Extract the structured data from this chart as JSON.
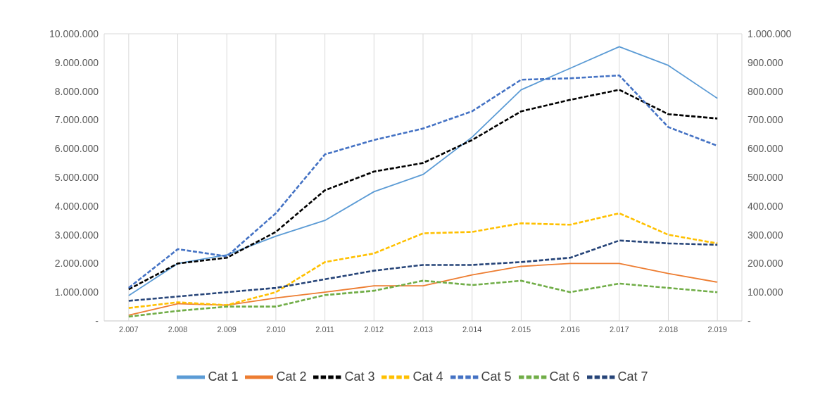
{
  "chart_data": {
    "type": "line",
    "categories": [
      "2.007",
      "2.008",
      "2.009",
      "2.010",
      "2.011",
      "2.012",
      "2.013",
      "2.014",
      "2.015",
      "2.016",
      "2.017",
      "2.018",
      "2.019"
    ],
    "series": [
      {
        "name": "Cat 1",
        "color": "#5b9bd5",
        "line_style": "solid",
        "values": [
          880000,
          2000000,
          2300000,
          2950000,
          3500000,
          4500000,
          5100000,
          6400000,
          8050000,
          8800000,
          9550000,
          8900000,
          7750000
        ]
      },
      {
        "name": "Cat 2",
        "color": "#ed7d31",
        "line_style": "solid",
        "values": [
          200000,
          600000,
          550000,
          800000,
          1000000,
          1220000,
          1220000,
          1600000,
          1900000,
          2000000,
          2000000,
          1650000,
          1350000
        ]
      },
      {
        "name": "Cat 3",
        "color": "#000000",
        "line_style": "dashed",
        "values": [
          1100000,
          2000000,
          2200000,
          3100000,
          4550000,
          5200000,
          5500000,
          6300000,
          7300000,
          7700000,
          8050000,
          7200000,
          7050000
        ]
      },
      {
        "name": "Cat 4",
        "color": "#ffc000",
        "line_style": "dashed",
        "values": [
          450000,
          650000,
          550000,
          1000000,
          2050000,
          2350000,
          3050000,
          3100000,
          3400000,
          3350000,
          3750000,
          3000000,
          2700000
        ]
      },
      {
        "name": "Cat 5",
        "color": "#4472c4",
        "line_style": "dashed",
        "values": [
          1150000,
          2500000,
          2250000,
          3750000,
          5800000,
          6300000,
          6700000,
          7300000,
          8400000,
          8450000,
          8550000,
          6750000,
          6100000
        ]
      },
      {
        "name": "Cat 6",
        "color": "#70ad47",
        "line_style": "dashed",
        "values": [
          150000,
          350000,
          500000,
          500000,
          900000,
          1050000,
          1400000,
          1250000,
          1400000,
          1000000,
          1300000,
          1150000,
          1000000
        ]
      },
      {
        "name": "Cat 7",
        "color": "#264478",
        "line_style": "dashed",
        "values": [
          700000,
          850000,
          1000000,
          1150000,
          1450000,
          1750000,
          1950000,
          1950000,
          2050000,
          2200000,
          2800000,
          2700000,
          2650000
        ]
      }
    ],
    "ylim": [
      0,
      10000000
    ],
    "yticks": [
      {
        "value": 0,
        "label": "-"
      },
      {
        "value": 1000000,
        "label": "1.000.000"
      },
      {
        "value": 2000000,
        "label": "2.000.000"
      },
      {
        "value": 3000000,
        "label": "3.000.000"
      },
      {
        "value": 4000000,
        "label": "4.000.000"
      },
      {
        "value": 5000000,
        "label": "5.000.000"
      },
      {
        "value": 6000000,
        "label": "6.000.000"
      },
      {
        "value": 7000000,
        "label": "7.000.000"
      },
      {
        "value": 8000000,
        "label": "8.000.000"
      },
      {
        "value": 9000000,
        "label": "9.000.000"
      },
      {
        "value": 10000000,
        "label": "10.000.000"
      }
    ],
    "y2lim": [
      0,
      1000000
    ],
    "y2ticks": [
      {
        "value": 0,
        "label": "-"
      },
      {
        "value": 100000,
        "label": "100.000"
      },
      {
        "value": 200000,
        "label": "200.000"
      },
      {
        "value": 300000,
        "label": "300.000"
      },
      {
        "value": 400000,
        "label": "400.000"
      },
      {
        "value": 500000,
        "label": "500.000"
      },
      {
        "value": 600000,
        "label": "600.000"
      },
      {
        "value": 700000,
        "label": "700.000"
      },
      {
        "value": 800000,
        "label": "800.000"
      },
      {
        "value": 900000,
        "label": "900.000"
      },
      {
        "value": 1000000,
        "label": "1.000.000"
      }
    ],
    "grid": true,
    "legend": "bottom",
    "marker": "none"
  }
}
